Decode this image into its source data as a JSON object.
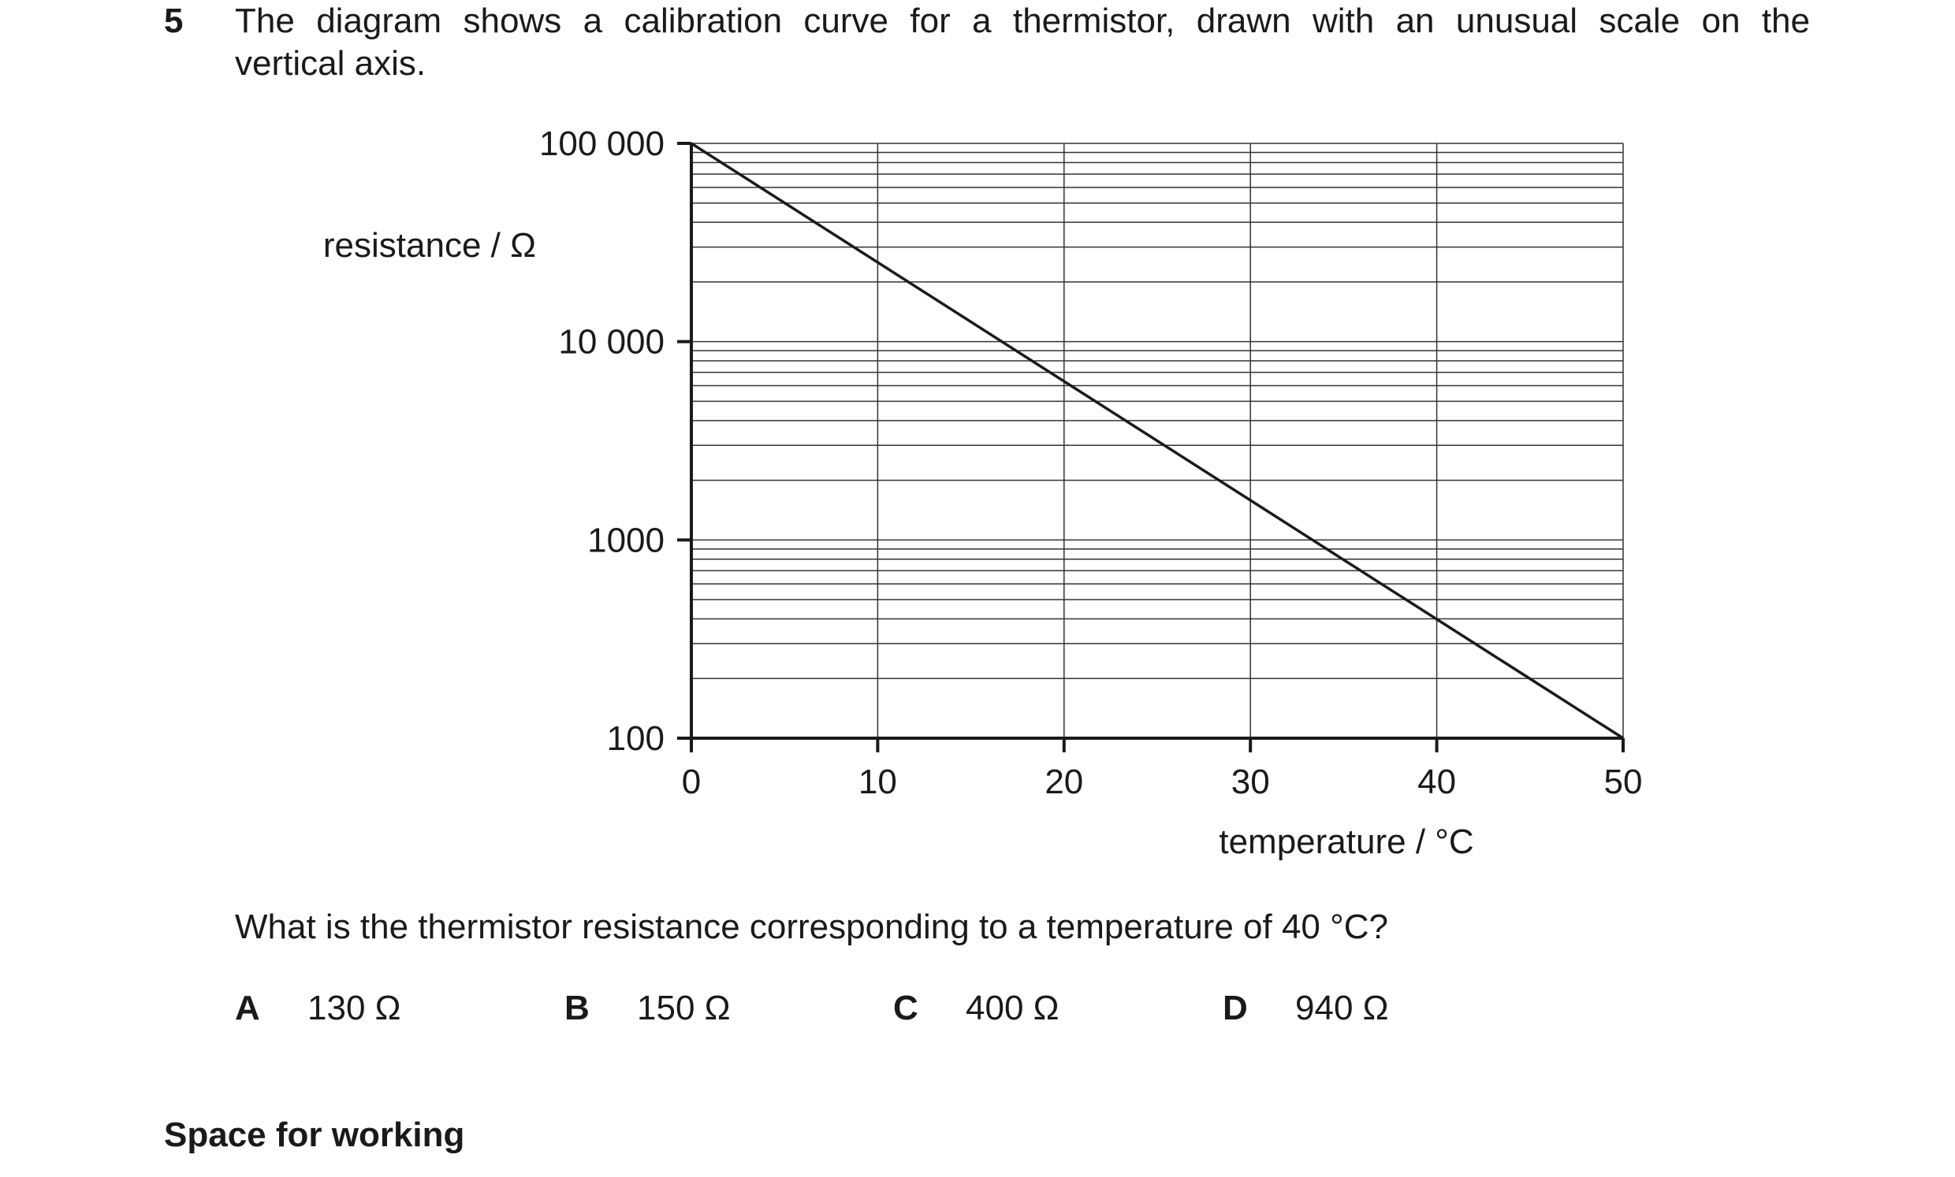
{
  "question": {
    "number": "5",
    "stem_line1": "The diagram shows a calibration curve for a thermistor, drawn with an unusual scale on the",
    "stem_line2": "vertical axis.",
    "prompt": "What is the thermistor resistance corresponding to a temperature of 40 °C?",
    "options": [
      {
        "letter": "A",
        "text": "130 Ω"
      },
      {
        "letter": "B",
        "text": "150 Ω"
      },
      {
        "letter": "C",
        "text": "400 Ω"
      },
      {
        "letter": "D",
        "text": "940 Ω"
      }
    ],
    "working_label": "Space for working"
  },
  "chart_data": {
    "type": "line",
    "xlabel": "temperature / °C",
    "ylabel": "resistance / Ω",
    "xlim": [
      0,
      50
    ],
    "ylim": [
      100,
      100000
    ],
    "yscale": "log",
    "grid": true,
    "x_ticks": [
      0,
      10,
      20,
      30,
      40,
      50
    ],
    "x_tick_labels": [
      "0",
      "10",
      "20",
      "30",
      "40",
      "50"
    ],
    "y_ticks": [
      100,
      1000,
      10000,
      100000
    ],
    "y_tick_labels": [
      "100",
      "1000",
      "10 000",
      "100 000"
    ],
    "series": [
      {
        "x": [
          0,
          50
        ],
        "y": [
          100000,
          100
        ]
      }
    ]
  }
}
